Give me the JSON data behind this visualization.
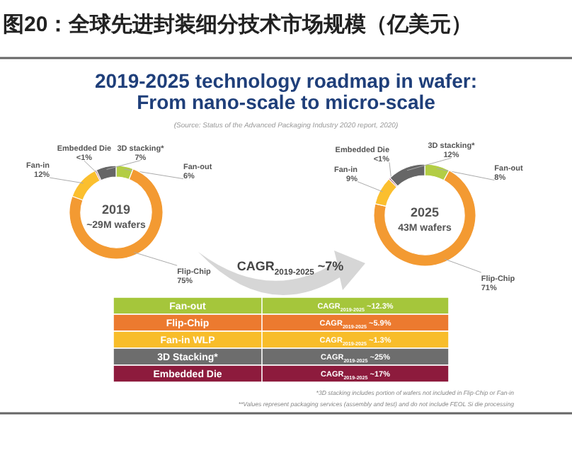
{
  "chart_data": [
    {
      "type": "other",
      "title": "图20：全球先进封装细分技术市场规模（亿美元）",
      "subtitle": "2019-2025 technology roadmap in wafer:\nFrom nano-scale to micro-scale",
      "annotations": [
        "(Source: Status of the Advanced Packaging Industry 2020 report, 2020)",
        "CAGR$_{2019-2025}$ ~7%"
      ]
    },
    {
      "type": "donut",
      "title": "2019",
      "subtitle": "~29M wafers",
      "categories": [
        "Fan-out",
        "Flip-Chip",
        "Fan-in",
        "Embedded Die",
        "3D stacking*"
      ],
      "values": [
        6,
        75,
        12,
        0.5,
        7
      ],
      "value_labels": [
        "6%",
        "75%",
        "12%",
        "<1%",
        "7%"
      ],
      "colors": [
        "#b3cd45",
        "#f39a32",
        "#fbbf2e",
        "#8d1b3d",
        "#666666"
      ]
    },
    {
      "type": "donut",
      "title": "2025",
      "subtitle": "43M wafers",
      "categories": [
        "Fan-out",
        "Flip-Chip",
        "Fan-in",
        "Embedded Die",
        "3D stacking*"
      ],
      "values": [
        8,
        71,
        9,
        0.5,
        12
      ],
      "value_labels": [
        "8%",
        "71%",
        "9%",
        "<1%",
        "12%"
      ],
      "colors": [
        "#b3cd45",
        "#f39a32",
        "#fbbf2e",
        "#8d1b3d",
        "#666666"
      ]
    },
    {
      "type": "other",
      "categories": [
        "Fan-out",
        "Flip-Chip",
        "Fan-in WLP",
        "3D Stacking*",
        "Embedded Die"
      ],
      "colors": [
        "#a5c63b",
        "#ec7a2f",
        "#f8bd2a",
        "#6d6d6d",
        "#8d1b3d"
      ],
      "value_labels": [
        "CAGR$_{2019-2025}$ ~12.3%",
        "CAGR$_{2019-2025}$ ~5.9%",
        "CAGR$_{2019-2025}$ ~1.3%",
        "CAGR$_{2019-2025}$ ~25%",
        "CAGR$_{2019-2025}$ ~17%"
      ],
      "annotations": [
        "*3D stacking includes portion of wafers not included in Flip-Chip or Fan-in",
        "**Values represent packaging services (assembly and test) and do not include FEOL Si die processing"
      ]
    }
  ]
}
